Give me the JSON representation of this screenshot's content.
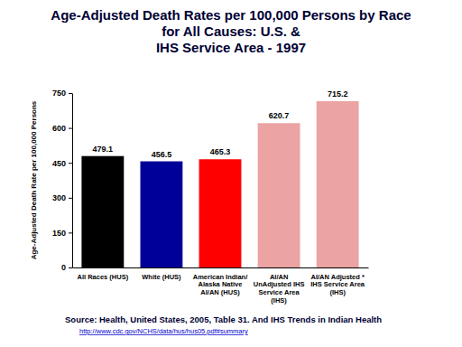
{
  "chart_data": {
    "type": "bar",
    "title": "Age-Adjusted Death Rates per 100,000 Persons by Race\nfor All Causes: U.S. &\nIHS Service Area - 1997",
    "y_label": "Age-Adjusted Death Rate per 100,000 Persons",
    "categories": [
      "All Races (HUS)",
      "White (HUS)",
      "American Indian/ Alaska Native AI/AN (HUS)",
      "AI/AN UnAdjusted IHS Service Area (IHS)",
      "AI/AN Adjusted * IHS Service Area (IHS)"
    ],
    "values": [
      479.1,
      456.5,
      465.3,
      620.7,
      715.2
    ],
    "colors": [
      "#000000",
      "#000099",
      "#ff0000",
      "#eba3a3",
      "#eba3a3"
    ],
    "ylim": [
      0,
      750
    ],
    "yticks": [
      0,
      150,
      300,
      450,
      600,
      750
    ],
    "grid": false,
    "data_labels": true,
    "annotations": [
      "Source: Health, United States, 2005, Table 31. And IHS Trends in Indian Health",
      "http://www.cdc.gov/NCHS/data/hus/hus05.pdf#summary"
    ]
  }
}
